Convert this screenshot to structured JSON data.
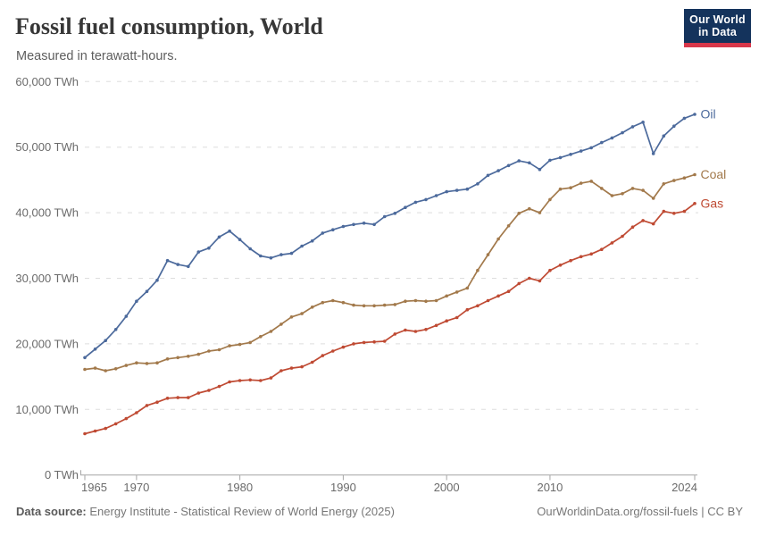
{
  "header": {
    "title": "Fossil fuel consumption, World",
    "subtitle": "Measured in terawatt-hours.",
    "logo": {
      "line1": "Our World",
      "line2": "in Data",
      "bg_color": "#14335C",
      "stripe_color": "#D8374A"
    }
  },
  "footer": {
    "source_label": "Data source:",
    "source_text": "Energy Institute - Statistical Review of World Energy (2025)",
    "url": "OurWorldinData.org/fossil-fuels",
    "divider": " | ",
    "license": "CC BY"
  },
  "chart_data": {
    "type": "line",
    "title": "Fossil fuel consumption, World",
    "subtitle": "Measured in terawatt-hours.",
    "unit": "TWh",
    "grid": "horizontal-dashed",
    "legend_position": "line-end-labels",
    "marker": "circle",
    "xlim": [
      1965,
      2024
    ],
    "ylim": [
      0,
      60000
    ],
    "x_ticks": [
      {
        "year": 1965,
        "label": "1965"
      },
      {
        "year": 1970,
        "label": "1970"
      },
      {
        "year": 1980,
        "label": "1980"
      },
      {
        "year": 1990,
        "label": "1990"
      },
      {
        "year": 2000,
        "label": "2000"
      },
      {
        "year": 2010,
        "label": "2010"
      },
      {
        "year": 2024,
        "label": "2024"
      }
    ],
    "y_ticks": [
      {
        "value": 0,
        "label": "0 TWh"
      },
      {
        "value": 10000,
        "label": "10,000 TWh"
      },
      {
        "value": 20000,
        "label": "20,000 TWh"
      },
      {
        "value": 30000,
        "label": "30,000 TWh"
      },
      {
        "value": 40000,
        "label": "40,000 TWh"
      },
      {
        "value": 50000,
        "label": "50,000 TWh"
      },
      {
        "value": 60000,
        "label": "60,000 TWh"
      }
    ],
    "x": [
      1965,
      1966,
      1967,
      1968,
      1969,
      1970,
      1971,
      1972,
      1973,
      1974,
      1975,
      1976,
      1977,
      1978,
      1979,
      1980,
      1981,
      1982,
      1983,
      1984,
      1985,
      1986,
      1987,
      1988,
      1989,
      1990,
      1991,
      1992,
      1993,
      1994,
      1995,
      1996,
      1997,
      1998,
      1999,
      2000,
      2001,
      2002,
      2003,
      2004,
      2005,
      2006,
      2007,
      2008,
      2009,
      2010,
      2011,
      2012,
      2013,
      2014,
      2015,
      2016,
      2017,
      2018,
      2019,
      2020,
      2021,
      2022,
      2023,
      2024
    ],
    "series": [
      {
        "name": "Oil",
        "color": "#4C6A9C",
        "values": [
          17900,
          19200,
          20500,
          22200,
          24200,
          26500,
          28000,
          29700,
          32700,
          32100,
          31800,
          34000,
          34600,
          36300,
          37200,
          35900,
          34500,
          33400,
          33100,
          33600,
          33800,
          34900,
          35700,
          36900,
          37400,
          37900,
          38200,
          38400,
          38200,
          39400,
          39900,
          40800,
          41600,
          42000,
          42600,
          43200,
          43400,
          43600,
          44400,
          45700,
          46400,
          47200,
          47900,
          47600,
          46600,
          48000,
          48400,
          48900,
          49400,
          49900,
          50700,
          51400,
          52200,
          53100,
          53800,
          49000,
          51700,
          53200,
          54400,
          55000
        ]
      },
      {
        "name": "Coal",
        "color": "#A2794B",
        "values": [
          16100,
          16300,
          15900,
          16200,
          16700,
          17100,
          17000,
          17100,
          17700,
          17900,
          18100,
          18400,
          18900,
          19100,
          19700,
          19900,
          20200,
          21100,
          21900,
          23000,
          24100,
          24600,
          25600,
          26300,
          26600,
          26300,
          25900,
          25800,
          25800,
          25900,
          26000,
          26500,
          26600,
          26500,
          26600,
          27300,
          27900,
          28500,
          31200,
          33600,
          36000,
          38000,
          39900,
          40600,
          40000,
          42000,
          43600,
          43800,
          44500,
          44800,
          43700,
          42600,
          42900,
          43700,
          43400,
          42200,
          44400,
          44900,
          45300,
          45800
        ]
      },
      {
        "name": "Gas",
        "color": "#BF4A33",
        "values": [
          6300,
          6700,
          7100,
          7800,
          8600,
          9500,
          10600,
          11100,
          11700,
          11800,
          11800,
          12500,
          12900,
          13500,
          14200,
          14400,
          14500,
          14400,
          14800,
          15900,
          16300,
          16500,
          17200,
          18200,
          18900,
          19500,
          20000,
          20200,
          20300,
          20400,
          21500,
          22100,
          21900,
          22200,
          22800,
          23500,
          24000,
          25200,
          25800,
          26600,
          27300,
          28000,
          29200,
          30000,
          29600,
          31200,
          32000,
          32700,
          33300,
          33700,
          34400,
          35400,
          36400,
          37800,
          38800,
          38300,
          40200,
          39900,
          40200,
          41400
        ]
      }
    ],
    "style": {
      "grid_color": "#dedede",
      "axis_color": "#a5a5a5",
      "tick_label_color": "#6b6b6b"
    }
  }
}
